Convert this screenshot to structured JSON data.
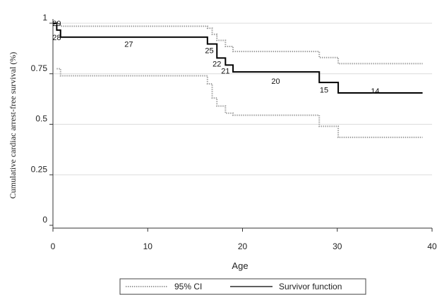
{
  "chart_data": {
    "type": "line",
    "title": "",
    "xlabel": "Age",
    "ylabel": "Cumulative cardiac arrest-free survival (%)",
    "xlim": [
      0,
      40
    ],
    "ylim": [
      0,
      1
    ],
    "x_ticks": [
      0,
      10,
      20,
      30,
      40
    ],
    "x_tick_labels": [
      "0",
      "10",
      "20",
      "30",
      "40"
    ],
    "y_ticks": [
      0,
      0.25,
      0.5,
      0.75,
      1
    ],
    "y_tick_labels": [
      "0",
      "0.25",
      "0.5",
      "0.75",
      "1"
    ],
    "grid": "horizontal",
    "legend_position": "bottom",
    "series": [
      {
        "name": "Survivor function",
        "style": "solid",
        "color": "#000000",
        "step_x": [
          0,
          0.4,
          0.8,
          16.3,
          17.3,
          18.2,
          19.0,
          28.1,
          30.1,
          39.0
        ],
        "step_y": [
          1.0,
          0.966,
          0.931,
          0.897,
          0.828,
          0.793,
          0.759,
          0.707,
          0.655,
          0.655
        ]
      },
      {
        "name": "95% CI",
        "style": "dotted",
        "color": "#999999",
        "part": "upper",
        "step_x": [
          0.4,
          0.8,
          16.3,
          16.8,
          17.3,
          18.2,
          19.0,
          28.1,
          30.1,
          39.0
        ],
        "step_y": [
          0.995,
          0.985,
          0.975,
          0.945,
          0.915,
          0.885,
          0.86,
          0.83,
          0.8,
          0.8
        ]
      },
      {
        "name": "95% CI",
        "style": "dotted",
        "color": "#999999",
        "part": "lower",
        "step_x": [
          0.4,
          0.8,
          16.3,
          16.8,
          17.3,
          18.2,
          19.0,
          28.1,
          30.1,
          39.0
        ],
        "step_y": [
          0.775,
          0.74,
          0.7,
          0.63,
          0.59,
          0.555,
          0.545,
          0.49,
          0.435,
          0.435
        ]
      }
    ],
    "annotations": [
      {
        "text": "29",
        "x": 0.4,
        "y": 1.0
      },
      {
        "text": "28",
        "x": 0.4,
        "y": 0.93
      },
      {
        "text": "27",
        "x": 8,
        "y": 0.897
      },
      {
        "text": "25",
        "x": 16.5,
        "y": 0.865
      },
      {
        "text": "22",
        "x": 17.3,
        "y": 0.8
      },
      {
        "text": "21",
        "x": 18.2,
        "y": 0.765
      },
      {
        "text": "20",
        "x": 23.5,
        "y": 0.715
      },
      {
        "text": "15",
        "x": 28.6,
        "y": 0.67
      },
      {
        "text": "14",
        "x": 34,
        "y": 0.665
      }
    ],
    "legend": [
      {
        "label": "95% CI",
        "style": "dotted",
        "color": "#999999"
      },
      {
        "label": "Survivor function",
        "style": "solid",
        "color": "#000000"
      }
    ]
  }
}
